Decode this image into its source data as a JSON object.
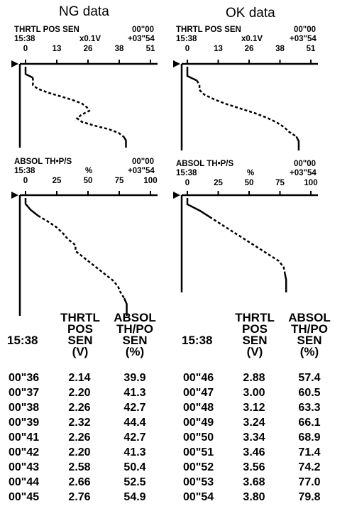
{
  "panels": {
    "ng": {
      "title": "NG data",
      "throttle": {
        "label": "THRTL  POS  SEN",
        "time": "15:38",
        "unit": "x0.1V",
        "time_start": "00\"00",
        "time_end": "+03\"54",
        "ticks": [
          "0",
          "13",
          "26",
          "38",
          "51"
        ]
      },
      "absolute": {
        "label": "ABSOL  TH•P/S",
        "time": "15:38",
        "unit": "%",
        "time_start": "00\"00",
        "time_end": "+03\"54",
        "ticks": [
          "0",
          "25",
          "50",
          "75",
          "100"
        ]
      }
    },
    "ok": {
      "title": "OK data",
      "throttle": {
        "label": "THRTL  POS  SEN",
        "time": "15:38",
        "unit": "x0.1V",
        "time_start": "00\"00",
        "time_end": "+03\"54",
        "ticks": [
          "0",
          "13",
          "26",
          "38",
          "51"
        ]
      },
      "absolute": {
        "label": "ABSOL  TH•P/S",
        "time": "15:38",
        "unit": "%",
        "time_start": "00\"00",
        "time_end": "+03\"54",
        "ticks": [
          "0",
          "25",
          "50",
          "75",
          "100"
        ]
      }
    }
  },
  "chart_data": [
    {
      "type": "line",
      "panel": "ng",
      "series_name": "THRTL POS SEN",
      "x_unit": "x0.1V",
      "xlim": [
        0,
        51
      ],
      "values_along_time": [
        0,
        0,
        0,
        3,
        3,
        3,
        5,
        9,
        14,
        19,
        23,
        25,
        26,
        23,
        21,
        23,
        28,
        34,
        38,
        40,
        41,
        41,
        41
      ]
    },
    {
      "type": "line",
      "panel": "ng",
      "series_name": "ABSOL TH•P/S",
      "x_unit": "%",
      "xlim": [
        0,
        100
      ],
      "values_along_time": [
        0,
        0,
        4,
        10,
        18,
        25,
        30,
        34,
        40,
        40,
        46,
        52,
        58,
        64,
        70,
        74,
        76,
        79,
        81,
        81,
        81
      ]
    },
    {
      "type": "line",
      "panel": "ok",
      "series_name": "THRTL POS SEN",
      "x_unit": "x0.1V",
      "xlim": [
        0,
        51
      ],
      "values_along_time": [
        0,
        0,
        0,
        4,
        5,
        5,
        7,
        11,
        16,
        22,
        28,
        33,
        37,
        40,
        42,
        45,
        46,
        46,
        46
      ]
    },
    {
      "type": "line",
      "panel": "ok",
      "series_name": "ABSOL TH•P/S",
      "x_unit": "%",
      "xlim": [
        0,
        100
      ],
      "values_along_time": [
        0,
        0,
        10,
        18,
        26,
        34,
        42,
        50,
        58,
        66,
        74,
        78,
        79,
        80,
        80,
        80
      ]
    }
  ],
  "tables": {
    "ng": {
      "time": "15:38",
      "col1": [
        "THRTL",
        "POS",
        "SEN",
        "(V)"
      ],
      "col2": [
        "ABSOL",
        "TH/PO",
        "SEN",
        "(%)"
      ],
      "rows": [
        {
          "t": "00\"36",
          "v": "2.14",
          "p": "39.9"
        },
        {
          "t": "00\"37",
          "v": "2.20",
          "p": "41.3"
        },
        {
          "t": "00\"38",
          "v": "2.26",
          "p": "42.7"
        },
        {
          "t": "00\"39",
          "v": "2.32",
          "p": "44.4"
        },
        {
          "t": "00\"41",
          "v": "2.26",
          "p": "42.7"
        },
        {
          "t": "00\"42",
          "v": "2.20",
          "p": "41.3"
        },
        {
          "t": "00\"43",
          "v": "2.58",
          "p": "50.4"
        },
        {
          "t": "00\"44",
          "v": "2.66",
          "p": "52.5"
        },
        {
          "t": "00\"45",
          "v": "2.76",
          "p": "54.9"
        }
      ]
    },
    "ok": {
      "time": "15:38",
      "col1": [
        "THRTL",
        "POS",
        "SEN",
        "(V)"
      ],
      "col2": [
        "ABSOL",
        "TH/PO",
        "SEN",
        "(%)"
      ],
      "rows": [
        {
          "t": "00\"46",
          "v": "2.88",
          "p": "57.4"
        },
        {
          "t": "00\"47",
          "v": "3.00",
          "p": "60.5"
        },
        {
          "t": "00\"48",
          "v": "3.12",
          "p": "63.3"
        },
        {
          "t": "00\"49",
          "v": "3.24",
          "p": "66.1"
        },
        {
          "t": "00\"50",
          "v": "3.34",
          "p": "68.9"
        },
        {
          "t": "00\"51",
          "v": "3.46",
          "p": "71.4"
        },
        {
          "t": "00\"52",
          "v": "3.56",
          "p": "74.2"
        },
        {
          "t": "00\"53",
          "v": "3.68",
          "p": "77.0"
        },
        {
          "t": "00\"54",
          "v": "3.80",
          "p": "79.8"
        }
      ]
    }
  }
}
